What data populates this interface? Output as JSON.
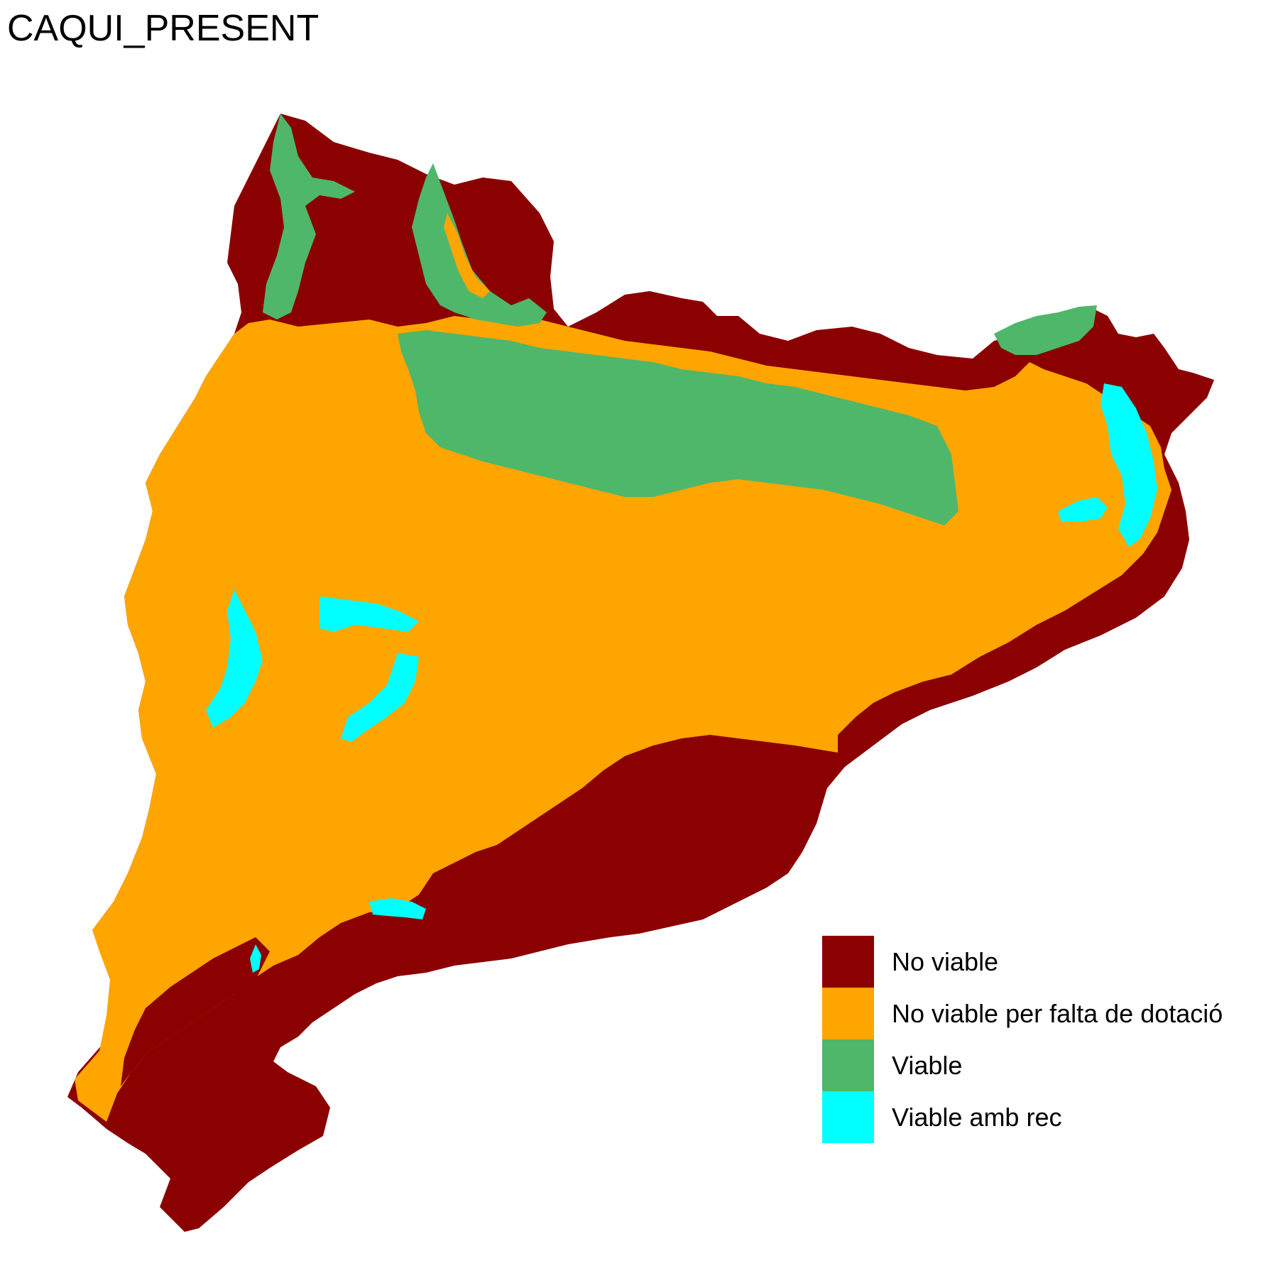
{
  "title": "CAQUI_PRESENT",
  "legend": {
    "items": [
      {
        "label": "No viable",
        "color": "#8B0000"
      },
      {
        "label": "No viable per falta de dotació",
        "color": "#FFA500"
      },
      {
        "label": "Viable",
        "color": "#4EB76A"
      },
      {
        "label": "Viable amb rec",
        "color": "#00FFFF"
      }
    ]
  }
}
